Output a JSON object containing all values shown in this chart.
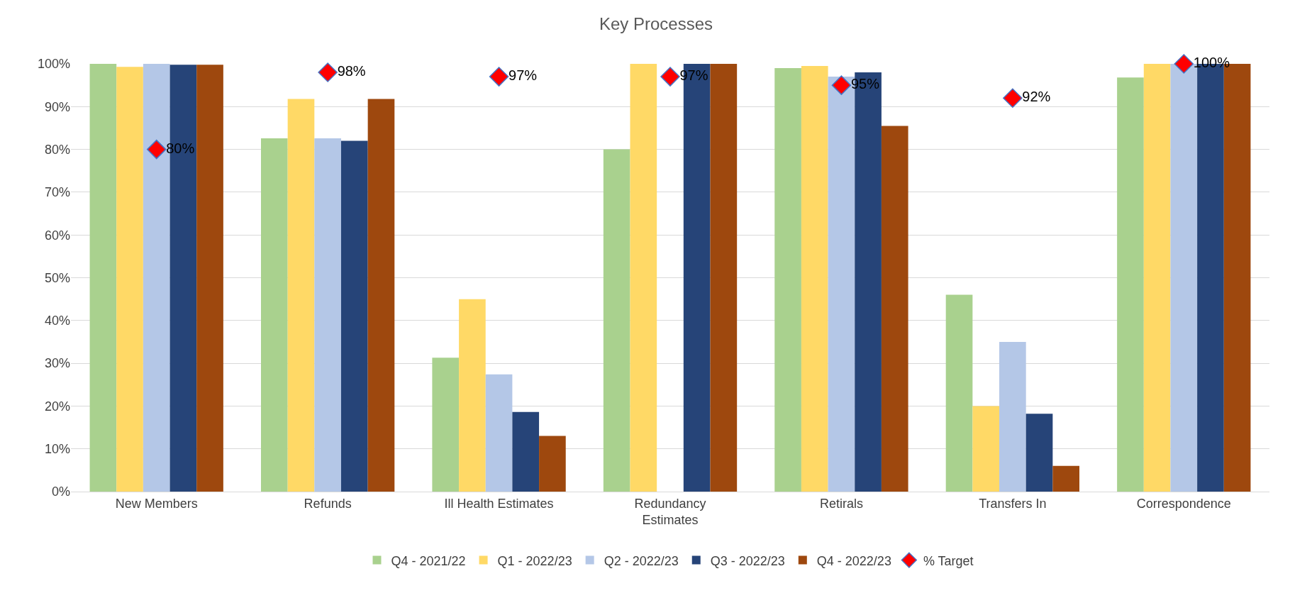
{
  "chart_data": {
    "type": "bar",
    "title": "Key Processes",
    "categories": [
      "New Members",
      "Refunds",
      "Ill Health Estimates",
      "Redundancy\nEstimates",
      "Retirals",
      "Transfers In",
      "Correspondence"
    ],
    "series": [
      {
        "name": "Q4 - 2021/22",
        "color": "#a9d18e",
        "values": [
          100,
          82.6,
          31.3,
          80,
          99,
          46,
          96.8
        ]
      },
      {
        "name": "Q1 - 2022/23",
        "color": "#ffd966",
        "values": [
          99.3,
          91.8,
          45,
          100,
          99.5,
          20,
          100
        ]
      },
      {
        "name": "Q2 - 2022/23",
        "color": "#b4c7e7",
        "values": [
          100,
          82.6,
          27.4,
          null,
          97,
          35,
          100
        ]
      },
      {
        "name": "Q3 - 2022/23",
        "color": "#264478",
        "values": [
          99.8,
          82,
          18.6,
          100,
          98,
          18.2,
          100
        ]
      },
      {
        "name": "Q4 - 2022/23",
        "color": "#9e480e",
        "values": [
          99.8,
          91.8,
          13,
          100,
          85.5,
          6,
          100
        ]
      },
      {
        "name": "% Target",
        "type": "scatter",
        "marker": "diamond",
        "color": "#ff0000",
        "values": [
          80,
          98,
          97,
          97,
          95,
          92,
          100
        ],
        "value_labels": [
          "80%",
          "98%",
          "97%",
          "97%",
          "95%",
          "92%",
          "100%"
        ]
      }
    ],
    "ylim": [
      0,
      100
    ],
    "yticks": [
      {
        "value": 0,
        "label": "0%"
      },
      {
        "value": 10,
        "label": "10%"
      },
      {
        "value": 20,
        "label": "20%"
      },
      {
        "value": 30,
        "label": "30%"
      },
      {
        "value": 40,
        "label": "40%"
      },
      {
        "value": 50,
        "label": "50%"
      },
      {
        "value": 60,
        "label": "60%"
      },
      {
        "value": 70,
        "label": "70%"
      },
      {
        "value": 80,
        "label": "80%"
      },
      {
        "value": 90,
        "label": "90%"
      },
      {
        "value": 100,
        "label": "100%"
      }
    ],
    "grid": "y",
    "legend": "bottom"
  }
}
